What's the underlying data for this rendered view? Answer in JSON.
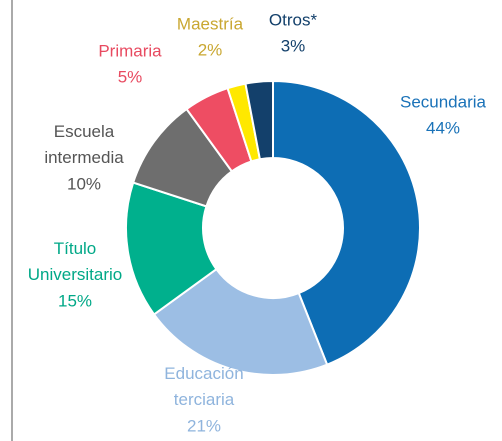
{
  "chart_data": {
    "type": "donut",
    "categories": [
      "Secundaria",
      "Educación terciaria",
      "Título Universitario",
      "Escuela intermedia",
      "Primaria",
      "Maestría",
      "Otros*"
    ],
    "values": [
      44,
      21,
      15,
      10,
      5,
      2,
      3
    ],
    "value_labels": [
      "44%",
      "21%",
      "15%",
      "10%",
      "5%",
      "2%",
      "3%"
    ],
    "colors": [
      "#0d6db4",
      "#9cbee4",
      "#00b08d",
      "#6e6e6e",
      "#ee4d63",
      "#ffe800",
      "#13406b"
    ],
    "label_colors": [
      "#1a72b8",
      "#8fb4dd",
      "#00a887",
      "#555555",
      "#e84a60",
      "#c9a731",
      "#13406b"
    ]
  }
}
